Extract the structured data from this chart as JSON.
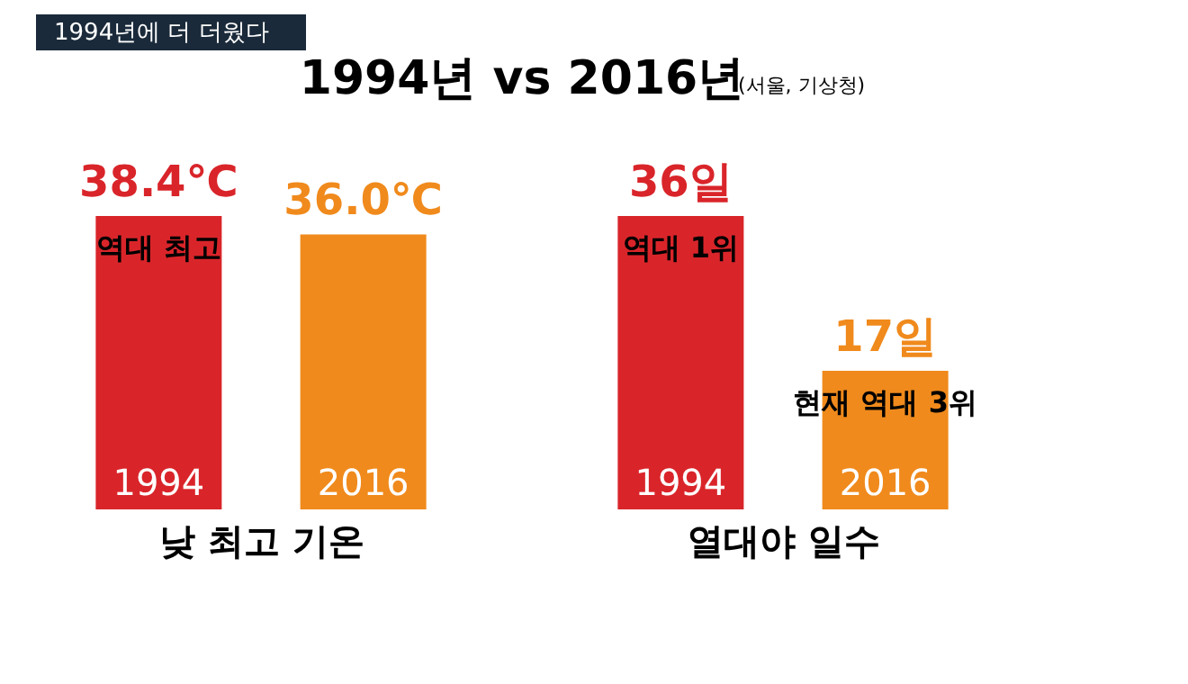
{
  "chart_data": [
    {
      "type": "bar",
      "title": "1994년 vs 2016년",
      "annotations": [
        "1994년에 더 더웠다",
        "(서울, 기상청)",
        {
          "text": "역대 최고",
          "x": "1994",
          "y": 38.4
        }
      ],
      "xlabel": "낮 최고 기온",
      "categories": [
        "1994",
        "2016"
      ],
      "values": [
        38.4,
        36.0
      ],
      "colors": [
        "#d9252a",
        "#f08a1c"
      ],
      "value_labels": [
        "38.4℃",
        "36.0℃"
      ]
    },
    {
      "type": "bar",
      "annotations": [
        {
          "text": "역대 1위",
          "x": "1994",
          "y": 36
        },
        {
          "text": "현재 역대 3위",
          "x": "2016",
          "y": 17
        }
      ],
      "xlabel": "열대야 일수",
      "categories": [
        "1994",
        "2016"
      ],
      "values": [
        36,
        17
      ],
      "colors": [
        "#d9252a",
        "#f08a1c"
      ],
      "value_labels": [
        "36일",
        "17일"
      ]
    }
  ]
}
